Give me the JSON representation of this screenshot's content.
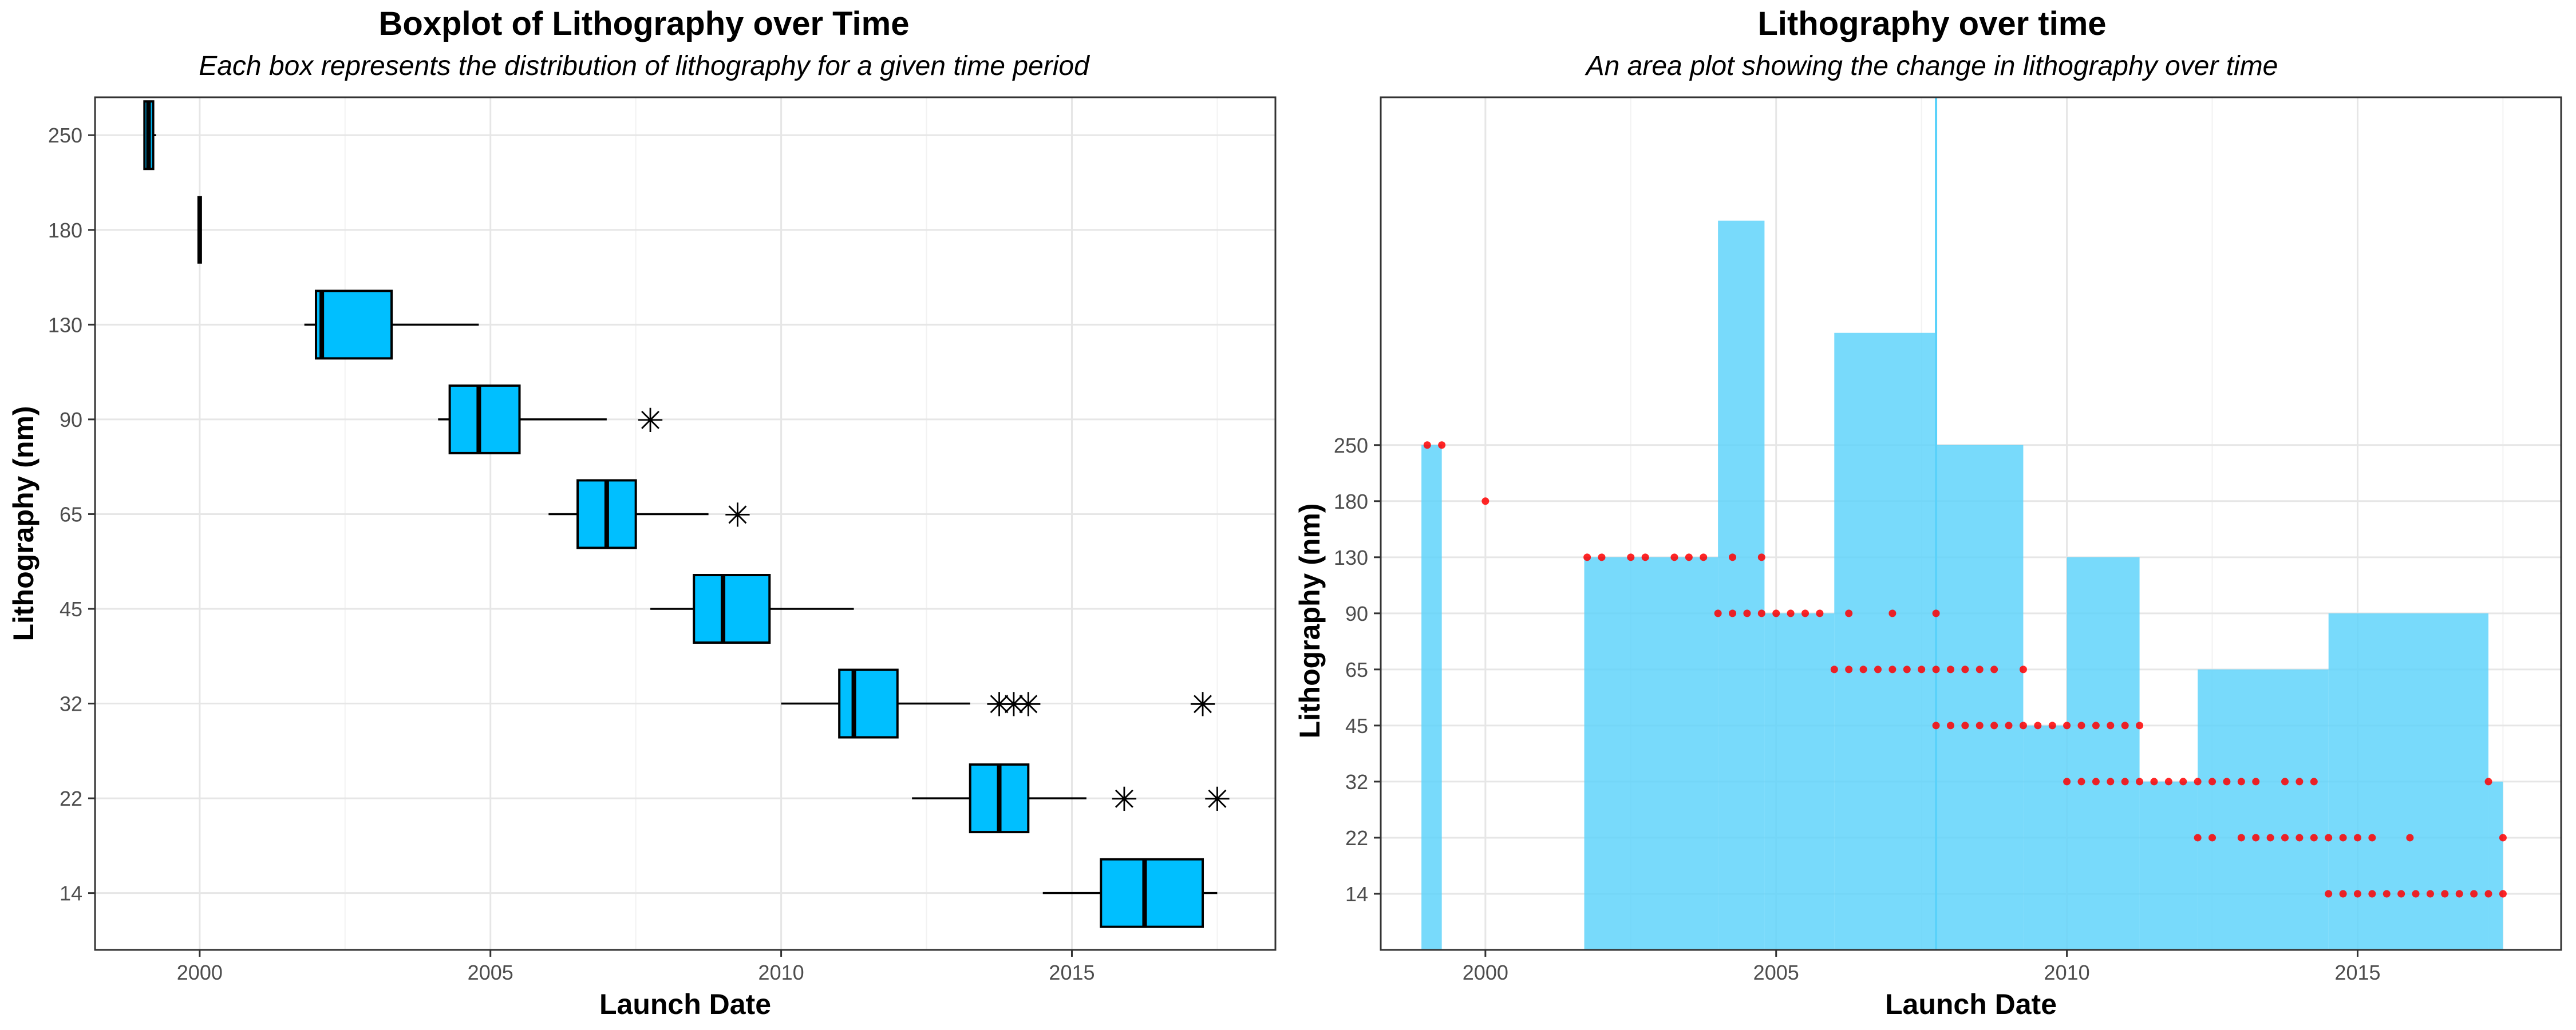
{
  "chart_data": [
    {
      "type": "boxplot",
      "title": "Boxplot of Lithography over Time",
      "subtitle": "Each box represents the distribution of lithography for a given time period",
      "xlabel": "Launch Date",
      "ylabel": "Lithography (nm)",
      "x_ticks": [
        "2000",
        "2005",
        "2010",
        "2015"
      ],
      "xlim": [
        1998.2,
        2018.5
      ],
      "y_categories": [
        "14",
        "22",
        "32",
        "45",
        "65",
        "90",
        "130",
        "180",
        "250"
      ],
      "grid": true,
      "fill_color": "#00bfff",
      "boxes": [
        {
          "category": "250",
          "min": 1999.05,
          "q1": 1999.05,
          "median": 1999.12,
          "q3": 1999.2,
          "max": 1999.25,
          "outliers": []
        },
        {
          "category": "180",
          "min": 2000.0,
          "q1": 2000.0,
          "median": 2000.0,
          "q3": 2000.0,
          "max": 2000.0,
          "outliers": []
        },
        {
          "category": "130",
          "min": 2001.8,
          "q1": 2002.0,
          "median": 2002.1,
          "q3": 2003.3,
          "max": 2004.8,
          "outliers": []
        },
        {
          "category": "90",
          "min": 2004.1,
          "q1": 2004.3,
          "median": 2004.8,
          "q3": 2005.5,
          "max": 2007.0,
          "outliers": [
            2007.75
          ]
        },
        {
          "category": "65",
          "min": 2006.0,
          "q1": 2006.5,
          "median": 2007.0,
          "q3": 2007.5,
          "max": 2008.75,
          "outliers": [
            2009.25
          ]
        },
        {
          "category": "45",
          "min": 2007.75,
          "q1": 2008.5,
          "median": 2009.0,
          "q3": 2009.8,
          "max": 2011.25,
          "outliers": []
        },
        {
          "category": "32",
          "min": 2010.0,
          "q1": 2011.0,
          "median": 2011.25,
          "q3": 2012.0,
          "max": 2013.25,
          "outliers": [
            2013.75,
            2014.0,
            2014.25,
            2017.25
          ]
        },
        {
          "category": "22",
          "min": 2012.25,
          "q1": 2013.25,
          "median": 2013.75,
          "q3": 2014.25,
          "max": 2015.25,
          "outliers": [
            2015.9,
            2017.5
          ]
        },
        {
          "category": "14",
          "min": 2014.5,
          "q1": 2015.5,
          "median": 2016.25,
          "q3": 2017.25,
          "max": 2017.5,
          "outliers": []
        }
      ]
    },
    {
      "type": "area",
      "title": "Lithography over time",
      "subtitle": "An area plot showing the change in lithography over time",
      "xlabel": "Launch Date",
      "ylabel": "Lithography (nm)",
      "x_ticks": [
        "2000",
        "2005",
        "2010",
        "2015"
      ],
      "xlim": [
        1998.2,
        2018.5
      ],
      "y_ticks": [
        "14",
        "22",
        "32",
        "45",
        "65",
        "90",
        "130",
        "180",
        "250"
      ],
      "y_tick_positions": [
        1,
        2,
        3,
        4,
        5,
        6,
        7,
        8,
        9
      ],
      "ylim": [
        0,
        15.2
      ],
      "grid": true,
      "area_color": "#5ad2fa",
      "point_color": "#ff0000",
      "area_steps": [
        {
          "x0": 1998.9,
          "x1": 1999.25,
          "y": 9
        },
        {
          "x0": 2001.7,
          "x1": 2004.0,
          "y": 7
        },
        {
          "x0": 2004.0,
          "x1": 2004.8,
          "y": 13
        },
        {
          "x0": 2004.8,
          "x1": 2006.0,
          "y": 6
        },
        {
          "x0": 2006.0,
          "x1": 2007.75,
          "y": 11
        },
        {
          "x0": 2007.75,
          "x1": 2009.25,
          "y": 9
        },
        {
          "x0": 2009.25,
          "x1": 2010.0,
          "y": 4
        },
        {
          "x0": 2010.0,
          "x1": 2011.25,
          "y": 7
        },
        {
          "x0": 2011.25,
          "x1": 2012.25,
          "y": 3
        },
        {
          "x0": 2012.25,
          "x1": 2014.5,
          "y": 5
        },
        {
          "x0": 2014.5,
          "x1": 2017.25,
          "y": 6
        },
        {
          "x0": 2017.25,
          "x1": 2017.5,
          "y": 3
        }
      ],
      "area_spikes": [
        {
          "x": 2007.75,
          "y": 15.2
        }
      ],
      "points": [
        {
          "y": 9,
          "x": [
            1999.0,
            1999.25
          ]
        },
        {
          "y": 8,
          "x": [
            2000.0
          ]
        },
        {
          "y": 7,
          "x": [
            2001.75,
            2002.0,
            2002.5,
            2002.75,
            2003.25,
            2003.5,
            2003.75,
            2004.25,
            2004.75
          ]
        },
        {
          "y": 6,
          "x": [
            2004.0,
            2004.25,
            2004.5,
            2004.75,
            2005.0,
            2005.25,
            2005.5,
            2005.75,
            2006.25,
            2007.0,
            2007.75
          ]
        },
        {
          "y": 5,
          "x": [
            2006.0,
            2006.25,
            2006.5,
            2006.75,
            2007.0,
            2007.25,
            2007.5,
            2007.75,
            2008.0,
            2008.25,
            2008.5,
            2008.75,
            2009.25
          ]
        },
        {
          "y": 4,
          "x": [
            2007.75,
            2008.0,
            2008.25,
            2008.5,
            2008.75,
            2009.0,
            2009.25,
            2009.5,
            2009.75,
            2010.0,
            2010.25,
            2010.5,
            2010.75,
            2011.0,
            2011.25
          ]
        },
        {
          "y": 3,
          "x": [
            2010.0,
            2010.25,
            2010.5,
            2010.75,
            2011.0,
            2011.25,
            2011.5,
            2011.75,
            2012.0,
            2012.25,
            2012.5,
            2012.75,
            2013.0,
            2013.25,
            2013.75,
            2014.0,
            2014.25,
            2017.25
          ]
        },
        {
          "y": 2,
          "x": [
            2012.25,
            2012.5,
            2013.0,
            2013.25,
            2013.5,
            2013.75,
            2014.0,
            2014.25,
            2014.5,
            2014.75,
            2015.0,
            2015.25,
            2015.9,
            2017.5
          ]
        },
        {
          "y": 1,
          "x": [
            2014.5,
            2014.75,
            2015.0,
            2015.25,
            2015.5,
            2015.75,
            2016.0,
            2016.25,
            2016.5,
            2016.75,
            2017.0,
            2017.25,
            2017.5
          ]
        }
      ]
    }
  ]
}
